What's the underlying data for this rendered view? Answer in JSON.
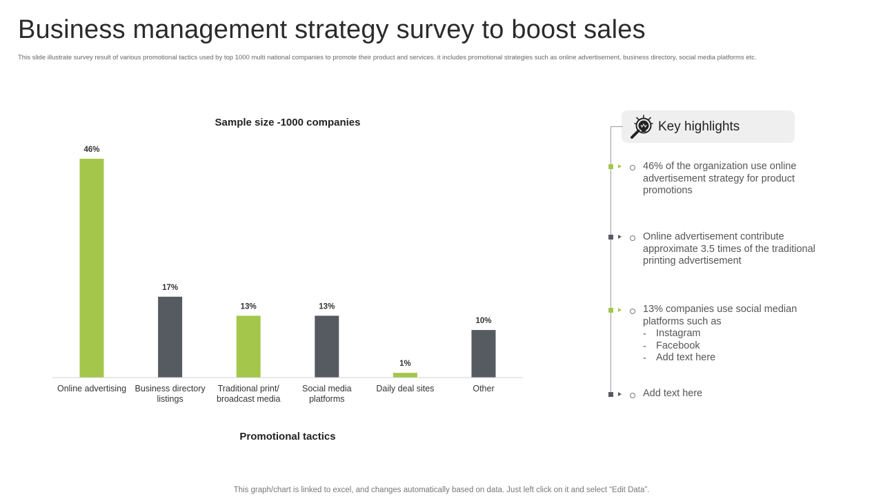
{
  "page": {
    "title": "Business management strategy survey to boost sales",
    "subtitle": "This slide illustrate survey result of various promotional tactics used by top 1000 multi national companies to promote their product and services. it includes promotional strategies such as online advertisement, business directory, social media platforms etc.",
    "footer": "This graph/chart is linked to excel, and changes automatically based on data. Just left click on it and select “Edit Data”."
  },
  "chart_data": {
    "type": "bar",
    "title": "Sample size -1000 companies",
    "xlabel": "Promotional tactics",
    "ylabel": "",
    "ylim": [
      0,
      46
    ],
    "grid": false,
    "legend": "none",
    "categories": [
      [
        "Online advertising"
      ],
      [
        "Business directory",
        "listings"
      ],
      [
        "Traditional print/",
        "broadcast media"
      ],
      [
        "Social media",
        "platforms"
      ],
      [
        "Daily deal sites"
      ],
      [
        "Other"
      ]
    ],
    "values": [
      46,
      17,
      13,
      13,
      1,
      10
    ],
    "value_labels": [
      "46%",
      "17%",
      "13%",
      "13%",
      "1%",
      "10%"
    ],
    "colors": [
      "#a4c74b",
      "#555b60",
      "#a4c74b",
      "#555b60",
      "#a4c74b",
      "#555b60"
    ]
  },
  "highlights": {
    "title": "Key highlights",
    "icon": "lightbulb-magnifier-icon",
    "items": [
      {
        "text": "46% of the organization use online advertisement strategy for product promotions",
        "marker_color": "#a4c74b"
      },
      {
        "text": "Online advertisement contribute approximate 3.5 times of the traditional printing advertisement",
        "marker_color": "#555b60"
      },
      {
        "text": "13% companies use social median platforms such as",
        "marker_color": "#a4c74b",
        "sub_items": [
          "Instagram",
          "Facebook",
          "Add text here"
        ]
      },
      {
        "text": "Add text here",
        "marker_color": "#555b60"
      }
    ]
  }
}
